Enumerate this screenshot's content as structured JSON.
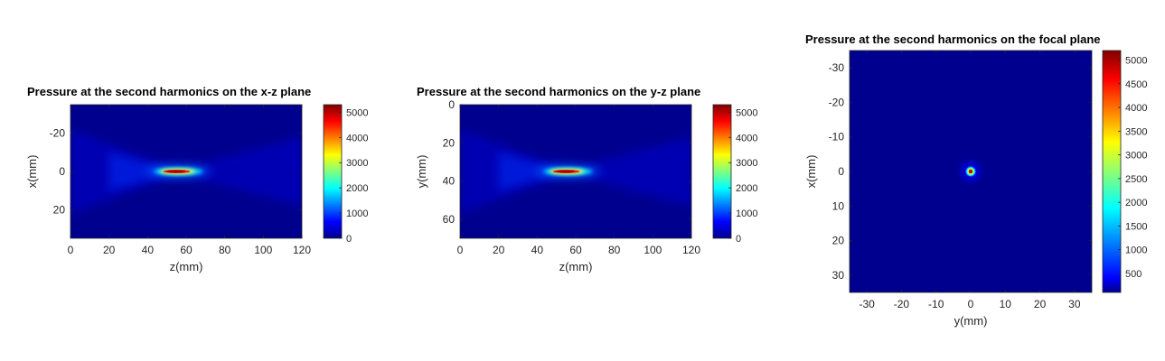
{
  "chart_data": [
    {
      "type": "heatmap",
      "title": "Pressure at the second harmonics on the x-z plane",
      "xlabel": "z(mm)",
      "ylabel": "x(mm)",
      "xlim": [
        0,
        120
      ],
      "ylim": [
        -35,
        35
      ],
      "x_ticks": [
        0,
        20,
        40,
        60,
        80,
        100,
        120
      ],
      "y_ticks": [
        -20,
        0,
        20
      ],
      "y_reversed": true,
      "colormap": "jet",
      "colorbar": {
        "range": [
          0,
          5300
        ],
        "ticks": [
          0,
          1000,
          2000,
          3000,
          4000,
          5000
        ]
      },
      "focus": {
        "z": 56,
        "x": 0,
        "peak": 5200
      }
    },
    {
      "type": "heatmap",
      "title": "Pressure at the second harmonics on the y-z plane",
      "xlabel": "z(mm)",
      "ylabel": "y(mm)",
      "xlim": [
        0,
        120
      ],
      "ylim": [
        0,
        70
      ],
      "x_ticks": [
        0,
        20,
        40,
        60,
        80,
        100,
        120
      ],
      "y_ticks": [
        0,
        20,
        40,
        60
      ],
      "y_reversed": true,
      "colormap": "jet",
      "colorbar": {
        "range": [
          0,
          5300
        ],
        "ticks": [
          0,
          1000,
          2000,
          3000,
          4000,
          5000
        ]
      },
      "focus": {
        "z": 56,
        "y": 35,
        "peak": 5200
      }
    },
    {
      "type": "heatmap",
      "title": "Pressure at the second harmonics on the focal plane",
      "xlabel": "y(mm)",
      "ylabel": "x(mm)",
      "xlim": [
        -35,
        35
      ],
      "ylim": [
        -35,
        35
      ],
      "x_ticks": [
        -30,
        -20,
        -10,
        0,
        10,
        20,
        30
      ],
      "y_ticks": [
        -30,
        -20,
        -10,
        0,
        10,
        20,
        30
      ],
      "y_reversed": true,
      "colormap": "jet",
      "colorbar": {
        "range": [
          100,
          5200
        ],
        "ticks": [
          500,
          1000,
          1500,
          2000,
          2500,
          3000,
          3500,
          4000,
          4500,
          5000
        ]
      },
      "focus": {
        "y": 0,
        "x": 0,
        "peak": 5200
      }
    }
  ]
}
